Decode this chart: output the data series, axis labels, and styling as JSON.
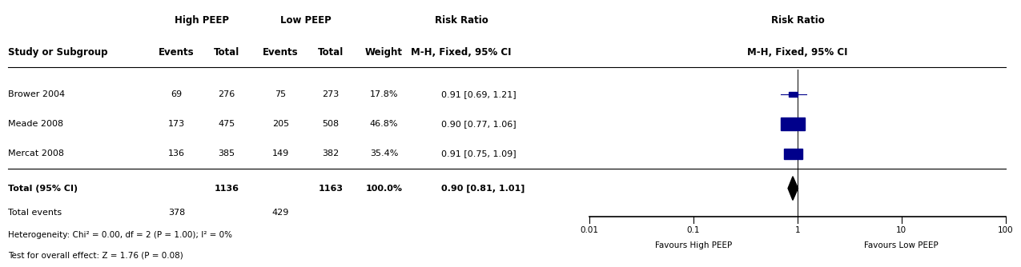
{
  "studies": [
    "Brower 2004",
    "Meade 2008",
    "Mercat 2008"
  ],
  "high_peep_events": [
    69,
    173,
    136
  ],
  "high_peep_total": [
    276,
    475,
    385
  ],
  "low_peep_events": [
    75,
    205,
    149
  ],
  "low_peep_total": [
    273,
    508,
    382
  ],
  "weights": [
    "17.8%",
    "46.8%",
    "35.4%"
  ],
  "rr": [
    0.91,
    0.9,
    0.91
  ],
  "ci_low": [
    0.69,
    0.77,
    0.75
  ],
  "ci_high": [
    1.21,
    1.06,
    1.09
  ],
  "rr_text": [
    "0.91 [0.69, 1.21]",
    "0.90 [0.77, 1.06]",
    "0.91 [0.75, 1.09]"
  ],
  "total_high_total": 1136,
  "total_low_total": 1163,
  "total_high_events": 378,
  "total_low_events": 429,
  "total_rr": 0.9,
  "total_ci_low": 0.81,
  "total_ci_high": 1.01,
  "total_rr_text": "0.90 [0.81, 1.01]",
  "total_weight": "100.0%",
  "heterogeneity_text": "Heterogeneity: Chi² = 0.00, df = 2 (P = 1.00); I² = 0%",
  "overall_effect_text": "Test for overall effect: Z = 1.76 (P = 0.08)",
  "col_header1": "High PEEP",
  "col_header2": "Low PEEP",
  "col_header3": "Risk Ratio",
  "col_header4": "Risk Ratio",
  "subheader_left": "M-H, Fixed, 95% CI",
  "subheader_right": "M-H, Fixed, 95% CI",
  "col_events": "Events",
  "col_total": "Total",
  "col_weight": "Weight",
  "study_col_label": "Study or Subgroup",
  "axis_ticks": [
    0.01,
    0.1,
    1,
    10,
    100
  ],
  "axis_tick_labels": [
    "0.01",
    "0.1",
    "1",
    "10",
    "100"
  ],
  "favours_left": "Favours High PEEP",
  "favours_right": "Favours Low PEEP",
  "square_color": "#00008B",
  "diamond_color": "#000000",
  "line_color": "#000000",
  "text_color": "#000000",
  "bg_color": "#ffffff",
  "marker_sizes": [
    17.8,
    46.8,
    35.4
  ]
}
